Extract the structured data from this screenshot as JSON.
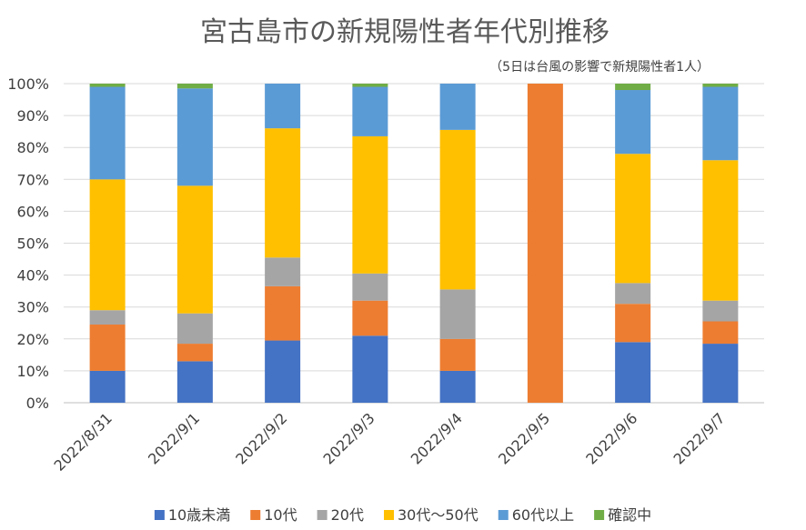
{
  "chart_data": {
    "type": "bar",
    "stacked": true,
    "title": "宮古島市の新規陽性者年代別推移",
    "subtitle": "（5日は台風の影響で新規陽性者1人）",
    "xlabel": "",
    "ylabel": "",
    "ylim": [
      0,
      100
    ],
    "y_ticks": [
      "0%",
      "10%",
      "20%",
      "30%",
      "40%",
      "50%",
      "60%",
      "70%",
      "80%",
      "90%",
      "100%"
    ],
    "grid": true,
    "legend_position": "bottom",
    "categories": [
      "2022/8/31",
      "2022/9/1",
      "2022/9/2",
      "2022/9/3",
      "2022/9/4",
      "2022/9/5",
      "2022/9/6",
      "2022/9/7"
    ],
    "series": [
      {
        "name": "10歳未満",
        "color": "#4472C4",
        "values": [
          10,
          13,
          19.5,
          21,
          10,
          0,
          19,
          18.5
        ]
      },
      {
        "name": "10代",
        "color": "#ED7D31",
        "values": [
          14.5,
          5.5,
          17,
          11,
          10,
          100,
          12,
          7
        ]
      },
      {
        "name": "20代",
        "color": "#A5A5A5",
        "values": [
          4.5,
          9.5,
          9,
          8.5,
          15.5,
          0,
          6.5,
          6.5
        ]
      },
      {
        "name": "30代～50代",
        "color": "#FFC000",
        "values": [
          41,
          40,
          40.5,
          43,
          50,
          0,
          40.5,
          44
        ]
      },
      {
        "name": "60代以上",
        "color": "#5B9BD5",
        "values": [
          29,
          30.5,
          14,
          15.5,
          14.5,
          0,
          20,
          23
        ]
      },
      {
        "name": "確認中",
        "color": "#70AD47",
        "values": [
          1,
          1.5,
          0,
          1,
          0,
          0,
          2,
          1
        ]
      }
    ]
  }
}
